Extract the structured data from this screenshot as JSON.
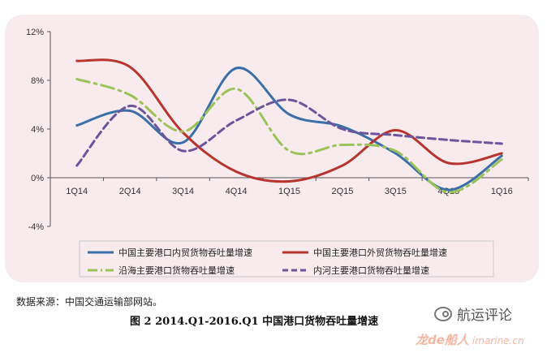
{
  "chart_data": {
    "type": "line",
    "categories": [
      "1Q14",
      "2Q14",
      "3Q14",
      "4Q14",
      "1Q15",
      "2Q15",
      "3Q15",
      "4Q15",
      "1Q16"
    ],
    "y_ticks": [
      "12%",
      "8%",
      "4%",
      "0%",
      "-4%"
    ],
    "ylim": [
      -4,
      12
    ],
    "series": [
      {
        "name": "中国主要港口内贸货物吞吐量增速",
        "color": "#3a6fa8",
        "dash": "solid",
        "values": [
          4.3,
          5.5,
          2.9,
          9.0,
          5.2,
          4.2,
          2.0,
          -1.0,
          1.8
        ]
      },
      {
        "name": "中国主要港口外贸货物吞吐量增速",
        "color": "#b8352f",
        "dash": "solid",
        "values": [
          9.6,
          9.1,
          3.7,
          0.5,
          -0.3,
          1.0,
          3.9,
          1.2,
          2.0
        ]
      },
      {
        "name": "沿海主要港口货物吞吐量增速",
        "color": "#9cc25a",
        "dash": "dashdot",
        "values": [
          8.1,
          6.8,
          3.8,
          7.3,
          2.2,
          2.7,
          2.2,
          -1.2,
          1.5
        ]
      },
      {
        "name": "内河主要港口货物吞吐量增速",
        "color": "#6c559a",
        "dash": "dash",
        "values": [
          1.0,
          5.9,
          2.2,
          4.7,
          6.4,
          4.0,
          3.5,
          3.1,
          2.8
        ]
      }
    ],
    "legend": "bottom"
  },
  "source_text": "数据来源：中国交通运输部网站。",
  "caption": "图 2 2014.Q1-2016.Q1  中国港口货物吞吐量增速",
  "brand": "航运评论",
  "watermark": {
    "main": "龙de船人",
    "site": "imarine.cn"
  }
}
